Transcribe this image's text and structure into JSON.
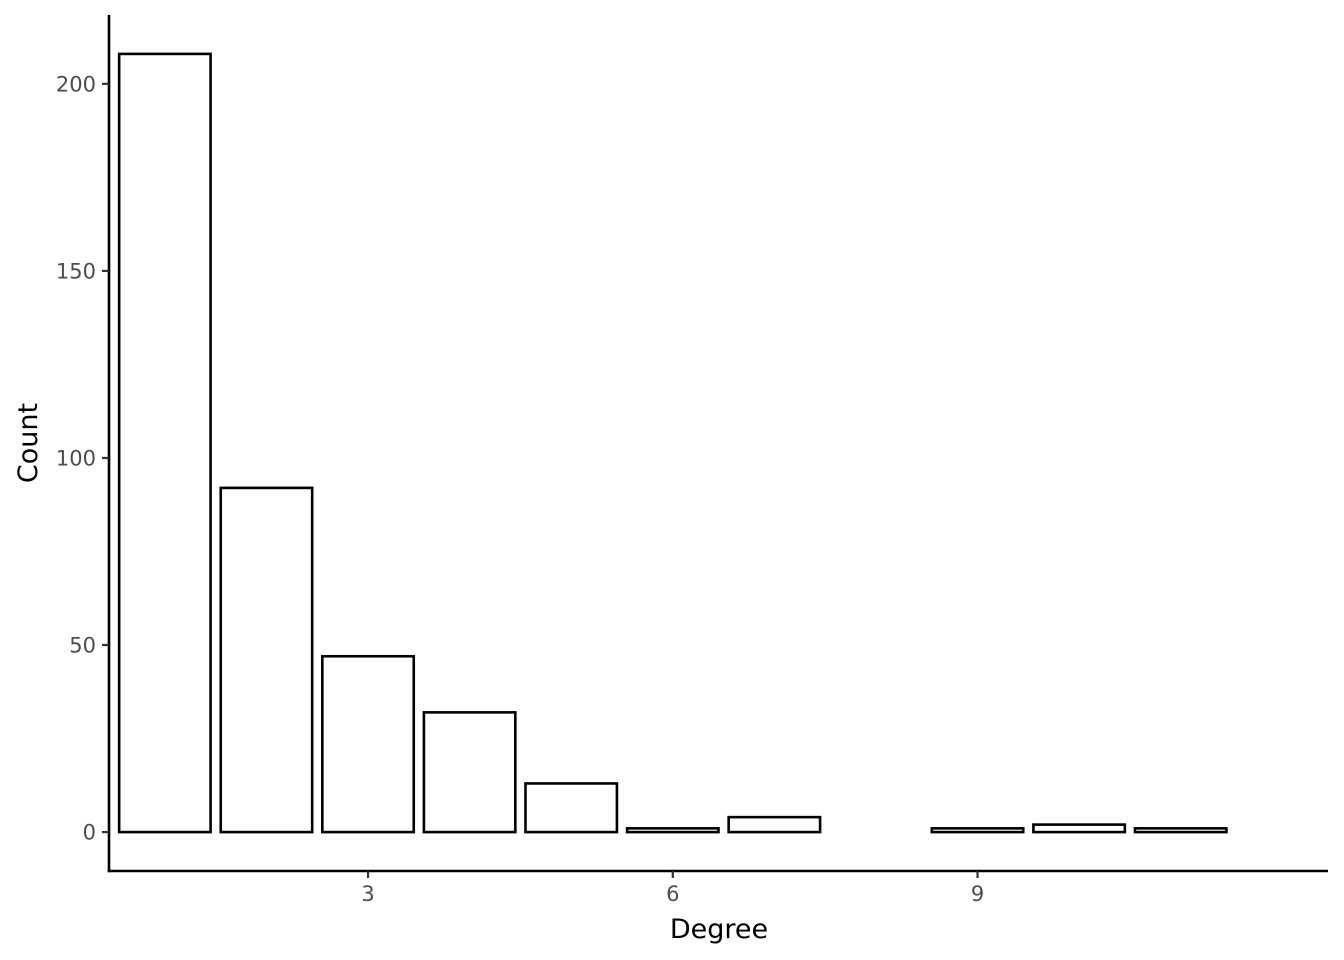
{
  "chart_data": {
    "type": "bar",
    "title": "",
    "xlabel": "Degree",
    "ylabel": "Count",
    "x": [
      1,
      2,
      3,
      4,
      5,
      6,
      7,
      9,
      10,
      11
    ],
    "values": [
      208,
      92,
      47,
      32,
      13,
      1,
      4,
      1,
      2,
      1
    ],
    "xlim": [
      0.45,
      12.45
    ],
    "ylim": [
      -10.4,
      218.4
    ],
    "x_ticks": [
      3,
      6,
      9
    ],
    "y_ticks": [
      0,
      50,
      100,
      150,
      200
    ],
    "bar_fill": "#ffffff",
    "bar_stroke": "#000000",
    "grid": false,
    "legend": "none"
  }
}
